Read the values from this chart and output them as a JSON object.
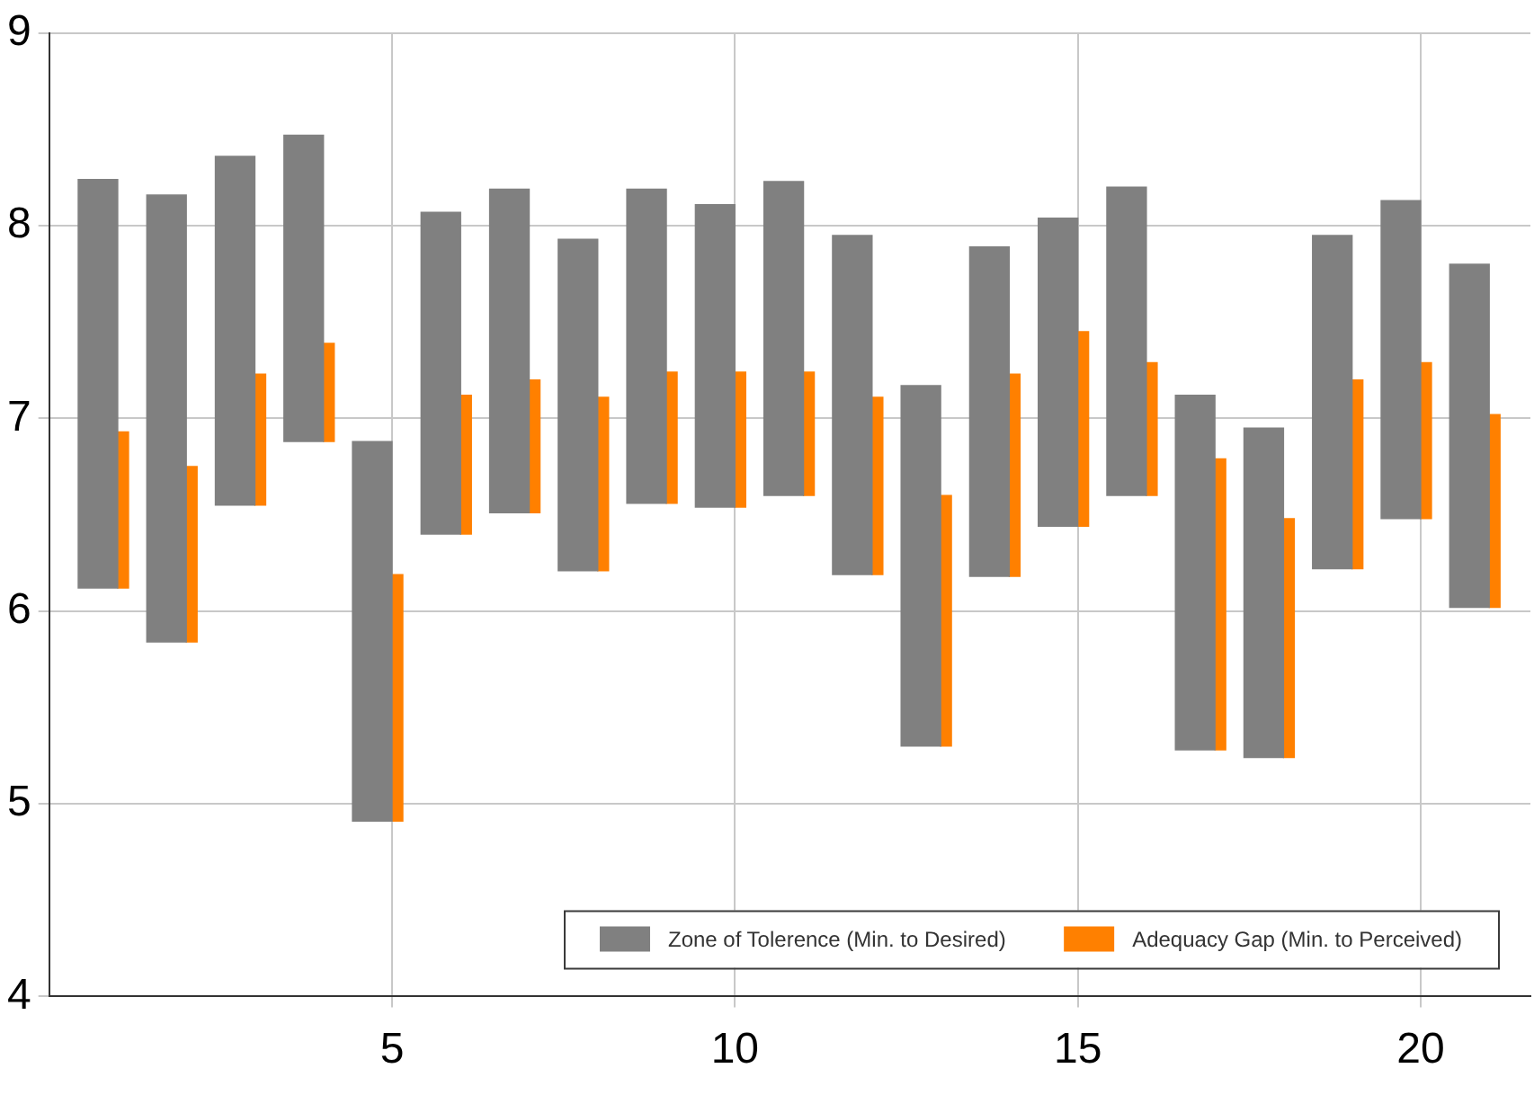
{
  "chart_data": {
    "type": "bar",
    "x": [
      1,
      2,
      3,
      4,
      5,
      6,
      7,
      8,
      9,
      10,
      11,
      12,
      13,
      14,
      15,
      16,
      17,
      18,
      19,
      20,
      21
    ],
    "series": [
      {
        "name": "Zone of Tolerence (Min. to Desired)",
        "color": "#808080",
        "base": [
          6.12,
          5.84,
          6.55,
          6.88,
          4.91,
          6.4,
          6.51,
          6.21,
          6.56,
          6.54,
          6.6,
          6.19,
          5.3,
          6.18,
          6.44,
          6.6,
          5.28,
          5.24,
          6.22,
          6.48,
          6.02
        ],
        "values": [
          2.12,
          2.32,
          1.81,
          1.59,
          1.97,
          1.67,
          1.68,
          1.72,
          1.63,
          1.57,
          1.63,
          1.76,
          1.87,
          1.71,
          1.6,
          1.6,
          1.84,
          1.71,
          1.73,
          1.65,
          1.78
        ]
      },
      {
        "name": "Adequacy Gap (Min. to Perceived)",
        "color": "#ff8000",
        "base": [
          6.12,
          5.84,
          6.55,
          6.88,
          4.91,
          6.4,
          6.51,
          6.21,
          6.56,
          6.54,
          6.6,
          6.19,
          5.3,
          6.18,
          6.44,
          6.6,
          5.28,
          5.24,
          6.22,
          6.48,
          6.02
        ],
        "values": [
          0.81,
          0.91,
          0.68,
          0.51,
          1.28,
          0.72,
          0.69,
          0.9,
          0.68,
          0.7,
          0.64,
          0.92,
          1.3,
          1.05,
          1.01,
          0.69,
          1.51,
          1.24,
          0.98,
          0.81,
          1.0
        ]
      }
    ],
    "xlim": [
      0,
      21.6
    ],
    "xticks": [
      5,
      10,
      15,
      20
    ],
    "ylim": [
      4,
      9
    ],
    "yticks": [
      4,
      5,
      6,
      7,
      8,
      9
    ],
    "grid": true,
    "legend": "bottom right"
  }
}
